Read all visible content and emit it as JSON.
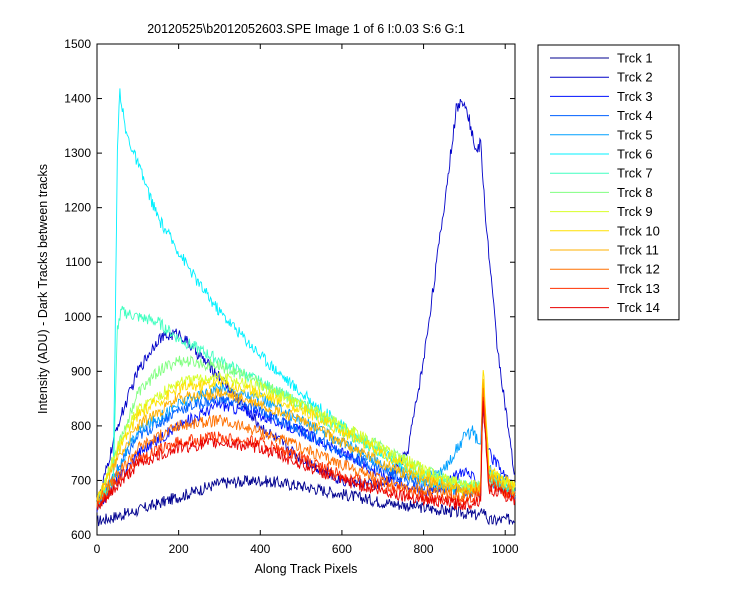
{
  "chart_data": {
    "type": "line",
    "title": "20120525\\b2012052603.SPE  Image 1 of 6  I:0.03  S:6  G:1",
    "xlabel": "Along Track Pixels",
    "ylabel": "Intensity (ADU) - Dark Tracks between tracks",
    "xlim": [
      0,
      1024
    ],
    "ylim": [
      600,
      1500
    ],
    "xticks": [
      "0",
      "200",
      "400",
      "600",
      "800",
      "1000"
    ],
    "yticks": [
      "600",
      "700",
      "800",
      "900",
      "1000",
      "1100",
      "1200",
      "1300",
      "1400",
      "1500"
    ],
    "legend_position": "outside-right",
    "grid": false,
    "series": [
      {
        "name": "Trck 1",
        "color": "#00008f",
        "x": [
          0,
          100,
          200,
          300,
          400,
          500,
          600,
          700,
          800,
          900,
          940,
          945,
          960,
          1024
        ],
        "y": [
          625,
          645,
          670,
          695,
          700,
          690,
          675,
          660,
          650,
          640,
          635,
          650,
          625,
          630
        ]
      },
      {
        "name": "Trck 2",
        "color": "#0000c8",
        "x": [
          0,
          50,
          100,
          150,
          200,
          250,
          300,
          400,
          500,
          600,
          700,
          760,
          800,
          850,
          880,
          900,
          930,
          940,
          950,
          980,
          1024
        ],
        "y": [
          650,
          800,
          900,
          960,
          970,
          930,
          890,
          800,
          740,
          700,
          690,
          750,
          920,
          1200,
          1380,
          1400,
          1300,
          1320,
          1200,
          950,
          700
        ]
      },
      {
        "name": "Trck 3",
        "color": "#0010ff",
        "x": [
          0,
          50,
          100,
          200,
          300,
          400,
          500,
          600,
          700,
          800,
          850,
          900,
          940,
          945,
          960,
          1024
        ],
        "y": [
          650,
          700,
          750,
          800,
          840,
          820,
          790,
          750,
          710,
          680,
          690,
          720,
          690,
          840,
          750,
          680
        ]
      },
      {
        "name": "Trck 4",
        "color": "#0060ff",
        "x": [
          0,
          50,
          100,
          200,
          300,
          400,
          500,
          600,
          700,
          800,
          900,
          940,
          945,
          960,
          1024
        ],
        "y": [
          650,
          720,
          780,
          830,
          850,
          830,
          790,
          750,
          720,
          690,
          680,
          680,
          850,
          700,
          670
        ]
      },
      {
        "name": "Trck 5",
        "color": "#00a0ff",
        "x": [
          0,
          50,
          100,
          200,
          300,
          400,
          500,
          600,
          700,
          800,
          850,
          900,
          920,
          940,
          945,
          960,
          1024
        ],
        "y": [
          650,
          720,
          790,
          840,
          870,
          850,
          810,
          770,
          730,
          700,
          720,
          780,
          790,
          760,
          850,
          720,
          680
        ]
      },
      {
        "name": "Trck 6",
        "color": "#00f0ff",
        "x": [
          0,
          40,
          50,
          55,
          70,
          100,
          150,
          200,
          250,
          300,
          400,
          500,
          600,
          700,
          800,
          900,
          940,
          945,
          960,
          1024
        ],
        "y": [
          660,
          700,
          1300,
          1420,
          1340,
          1280,
          1180,
          1120,
          1060,
          1010,
          930,
          860,
          800,
          750,
          700,
          680,
          690,
          860,
          700,
          680
        ]
      },
      {
        "name": "Trck 7",
        "color": "#40ffc0",
        "x": [
          0,
          40,
          50,
          60,
          100,
          150,
          200,
          300,
          400,
          500,
          600,
          700,
          800,
          900,
          940,
          945,
          960,
          1024
        ],
        "y": [
          660,
          700,
          980,
          1010,
          1000,
          990,
          960,
          920,
          880,
          840,
          790,
          750,
          710,
          690,
          690,
          860,
          700,
          680
        ]
      },
      {
        "name": "Trck 8",
        "color": "#80ff80",
        "x": [
          0,
          50,
          100,
          150,
          200,
          300,
          400,
          500,
          600,
          700,
          800,
          900,
          940,
          945,
          960,
          1024
        ],
        "y": [
          660,
          760,
          860,
          900,
          920,
          910,
          880,
          840,
          800,
          760,
          720,
          690,
          690,
          870,
          710,
          690
        ]
      },
      {
        "name": "Trck 9",
        "color": "#d8ff28",
        "x": [
          0,
          50,
          100,
          200,
          300,
          400,
          500,
          600,
          700,
          800,
          900,
          940,
          945,
          960,
          1024
        ],
        "y": [
          660,
          760,
          830,
          880,
          890,
          870,
          840,
          800,
          760,
          720,
          690,
          690,
          900,
          710,
          690
        ]
      },
      {
        "name": "Trck 10",
        "color": "#ffe000",
        "x": [
          0,
          50,
          100,
          200,
          300,
          400,
          500,
          600,
          700,
          800,
          900,
          940,
          945,
          960,
          1024
        ],
        "y": [
          660,
          750,
          820,
          870,
          880,
          860,
          830,
          790,
          750,
          710,
          680,
          690,
          920,
          720,
          690
        ]
      },
      {
        "name": "Trck 11",
        "color": "#ffb000",
        "x": [
          0,
          50,
          100,
          200,
          300,
          400,
          500,
          600,
          700,
          800,
          900,
          940,
          945,
          960,
          1024
        ],
        "y": [
          660,
          740,
          800,
          850,
          860,
          840,
          810,
          770,
          730,
          700,
          680,
          690,
          900,
          710,
          680
        ]
      },
      {
        "name": "Trck 12",
        "color": "#ff7000",
        "x": [
          0,
          50,
          100,
          200,
          300,
          400,
          500,
          600,
          700,
          800,
          900,
          940,
          945,
          960,
          1024
        ],
        "y": [
          660,
          710,
          760,
          800,
          810,
          790,
          760,
          730,
          700,
          680,
          670,
          680,
          880,
          700,
          670
        ]
      },
      {
        "name": "Trck 13",
        "color": "#ff3000",
        "x": [
          0,
          50,
          100,
          200,
          300,
          400,
          500,
          600,
          700,
          800,
          900,
          940,
          945,
          960,
          1024
        ],
        "y": [
          650,
          700,
          740,
          770,
          780,
          770,
          740,
          710,
          690,
          670,
          660,
          670,
          860,
          690,
          670
        ]
      },
      {
        "name": "Trck 14",
        "color": "#e80000",
        "x": [
          0,
          50,
          100,
          200,
          300,
          400,
          500,
          600,
          700,
          800,
          900,
          940,
          945,
          960,
          1024
        ],
        "y": [
          645,
          690,
          730,
          760,
          770,
          760,
          730,
          700,
          680,
          665,
          655,
          665,
          850,
          685,
          665
        ]
      }
    ]
  }
}
